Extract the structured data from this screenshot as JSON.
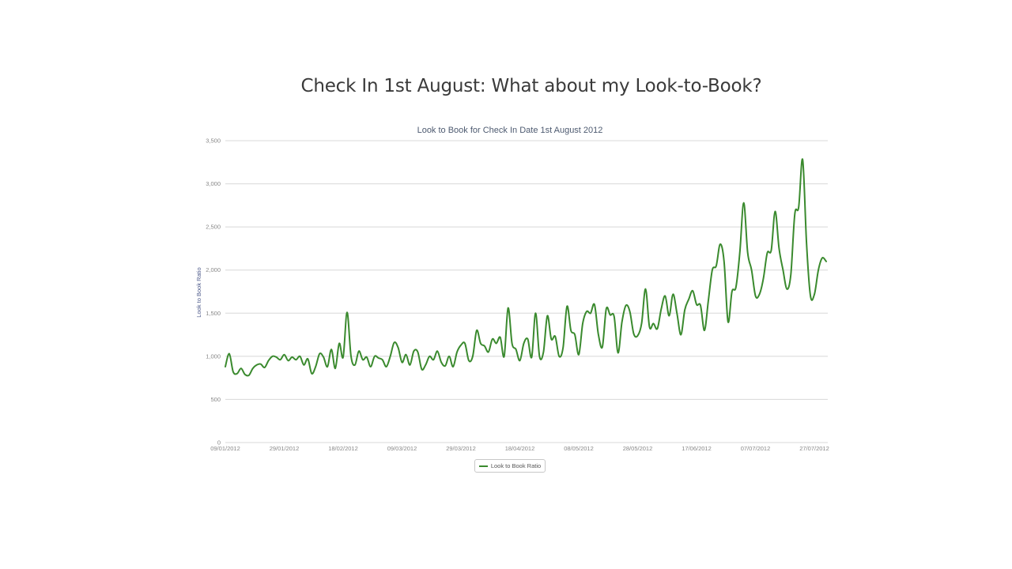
{
  "slide": {
    "title": "Check In 1st August: What about my Look-to-Book?"
  },
  "legend": {
    "label": "Look to Book Ratio"
  },
  "colors": {
    "series": "#3a8a2e",
    "grid": "#d8d8d8",
    "title": "#3a3a3a"
  },
  "chart_data": {
    "type": "line",
    "title": "Look to Book for Check In Date 1st August 2012",
    "xlabel": "",
    "ylabel": "Look to Book Ratio",
    "ylim": [
      0,
      3500
    ],
    "yticks": [
      0,
      500,
      1000,
      1500,
      2000,
      2500,
      3000,
      3500
    ],
    "ytick_labels": [
      "0",
      "500",
      "1,000",
      "1,500",
      "2,000",
      "2,500",
      "3,000",
      "3,500"
    ],
    "xtick_labels": [
      "09/01/2012",
      "29/01/2012",
      "18/02/2012",
      "09/03/2012",
      "29/03/2012",
      "18/04/2012",
      "08/05/2012",
      "28/05/2012",
      "17/06/2012",
      "07/07/2012",
      "27/07/2012"
    ],
    "x_start": "09/01/2012",
    "x_interval_days": 2,
    "grid": true,
    "legend_position": "bottom-center",
    "series": [
      {
        "name": "Look to Book Ratio",
        "values": [
          880,
          1030,
          820,
          800,
          860,
          790,
          780,
          860,
          900,
          910,
          870,
          950,
          1000,
          990,
          960,
          1020,
          950,
          990,
          960,
          1000,
          900,
          970,
          800,
          880,
          1030,
          990,
          880,
          1080,
          860,
          1150,
          990,
          1510,
          1000,
          900,
          1060,
          960,
          990,
          880,
          1000,
          980,
          960,
          880,
          1000,
          1160,
          1100,
          930,
          1020,
          900,
          1060,
          1050,
          850,
          900,
          1000,
          960,
          1060,
          930,
          890,
          1000,
          880,
          1050,
          1130,
          1150,
          950,
          1000,
          1300,
          1150,
          1120,
          1050,
          1200,
          1150,
          1220,
          1000,
          1560,
          1150,
          1080,
          950,
          1150,
          1200,
          990,
          1500,
          1000,
          1050,
          1470,
          1200,
          1230,
          1000,
          1100,
          1580,
          1300,
          1250,
          1020,
          1380,
          1520,
          1500,
          1600,
          1250,
          1110,
          1550,
          1480,
          1460,
          1040,
          1400,
          1590,
          1520,
          1260,
          1240,
          1380,
          1780,
          1340,
          1380,
          1320,
          1550,
          1700,
          1470,
          1720,
          1500,
          1250,
          1540,
          1660,
          1760,
          1600,
          1590,
          1300,
          1650,
          2000,
          2050,
          2300,
          2100,
          1400,
          1750,
          1800,
          2200,
          2780,
          2200,
          2000,
          1700,
          1720,
          1900,
          2200,
          2230,
          2680,
          2250,
          2000,
          1780,
          1950,
          2650,
          2730,
          3280,
          2300,
          1700,
          1720,
          2000,
          2140,
          2100
        ]
      }
    ]
  }
}
